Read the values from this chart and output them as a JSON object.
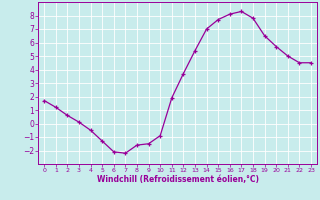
{
  "x": [
    0,
    1,
    2,
    3,
    4,
    5,
    6,
    7,
    8,
    9,
    10,
    11,
    12,
    13,
    14,
    15,
    16,
    17,
    18,
    19,
    20,
    21,
    22,
    23
  ],
  "y": [
    1.7,
    1.2,
    0.6,
    0.1,
    -0.5,
    -1.3,
    -2.1,
    -2.2,
    -1.6,
    -1.5,
    -0.9,
    1.9,
    3.7,
    5.4,
    7.0,
    7.7,
    8.1,
    8.3,
    7.8,
    6.5,
    5.7,
    5.0,
    4.5,
    4.5
  ],
  "line_color": "#990099",
  "marker": "+",
  "marker_size": 3,
  "bg_color": "#c8ecec",
  "grid_color": "#ffffff",
  "xlabel": "Windchill (Refroidissement éolien,°C)",
  "xlabel_color": "#990099",
  "tick_color": "#990099",
  "ylim": [
    -3,
    9
  ],
  "xlim": [
    -0.5,
    23.5
  ],
  "yticks": [
    -2,
    -1,
    0,
    1,
    2,
    3,
    4,
    5,
    6,
    7,
    8
  ],
  "xticks": [
    0,
    1,
    2,
    3,
    4,
    5,
    6,
    7,
    8,
    9,
    10,
    11,
    12,
    13,
    14,
    15,
    16,
    17,
    18,
    19,
    20,
    21,
    22,
    23
  ]
}
